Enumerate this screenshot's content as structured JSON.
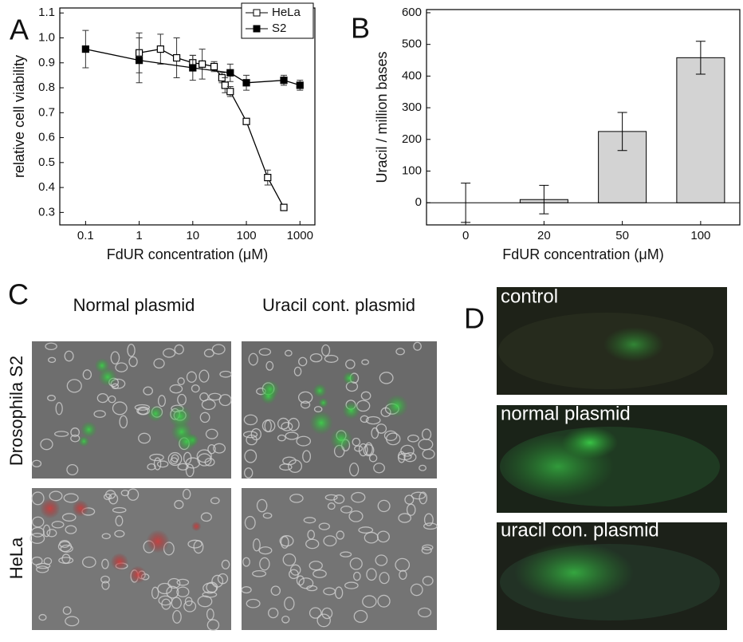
{
  "chart_data": [
    {
      "type": "line",
      "panel_label": "A",
      "xlabel": "FdUR concentration (μM)",
      "ylabel": "relative cell viability",
      "xscale": "log",
      "xlim": [
        0.033,
        1900
      ],
      "xticks": [
        0.1,
        1,
        10,
        100,
        1000
      ],
      "ylim": [
        0.25,
        1.12
      ],
      "yticks": [
        0.3,
        0.4,
        0.5,
        0.6,
        0.7,
        0.8,
        0.9,
        {
          "value": 1.0,
          "label": "1.0"
        },
        1.1
      ],
      "legend": "upper right",
      "series": [
        {
          "name": "HeLa",
          "color": "#000000",
          "marker": "open-square",
          "x": [
            1,
            2.5,
            5,
            10,
            15,
            25,
            35,
            40,
            50,
            100,
            250,
            500
          ],
          "values": [
            0.94,
            0.955,
            0.92,
            0.9,
            0.895,
            0.885,
            0.84,
            0.81,
            0.785,
            0.665,
            0.44,
            0.32
          ],
          "errors": [
            0.08,
            0.06,
            0.08,
            0.03,
            0.06,
            0.02,
            0.02,
            0.03,
            0.02,
            0.01,
            0.03,
            0.01
          ]
        },
        {
          "name": "S2",
          "color": "#000000",
          "marker": "filled-square",
          "x": [
            0.1,
            1,
            10,
            50,
            100,
            500,
            1000
          ],
          "values": [
            0.955,
            0.91,
            0.88,
            0.86,
            0.82,
            0.83,
            0.81
          ],
          "errors": [
            0.075,
            0.09,
            0.05,
            0.035,
            0.03,
            0.02,
            0.02
          ]
        }
      ]
    },
    {
      "type": "bar",
      "panel_label": "B",
      "xlabel": "FdUR concentration (μM)",
      "ylabel": "Uracil / million bases",
      "categories": [
        "0",
        "20",
        "50",
        "100"
      ],
      "values": [
        0,
        10,
        225,
        458
      ],
      "errors": [
        62,
        45,
        60,
        52
      ],
      "color": "#d3d3d3",
      "ylim": [
        -70,
        610
      ],
      "yticks": [
        0,
        100,
        200,
        300,
        400,
        500,
        600
      ]
    }
  ],
  "panel_c": {
    "panel_label": "C",
    "columns": [
      "Normal plasmid",
      "Uracil cont. plasmid"
    ],
    "rows": [
      "Drosophila S2",
      "HeLa"
    ]
  },
  "panel_d": {
    "panel_label": "D",
    "images": [
      "control",
      "normal plasmid",
      "uracil con. plasmid"
    ]
  }
}
